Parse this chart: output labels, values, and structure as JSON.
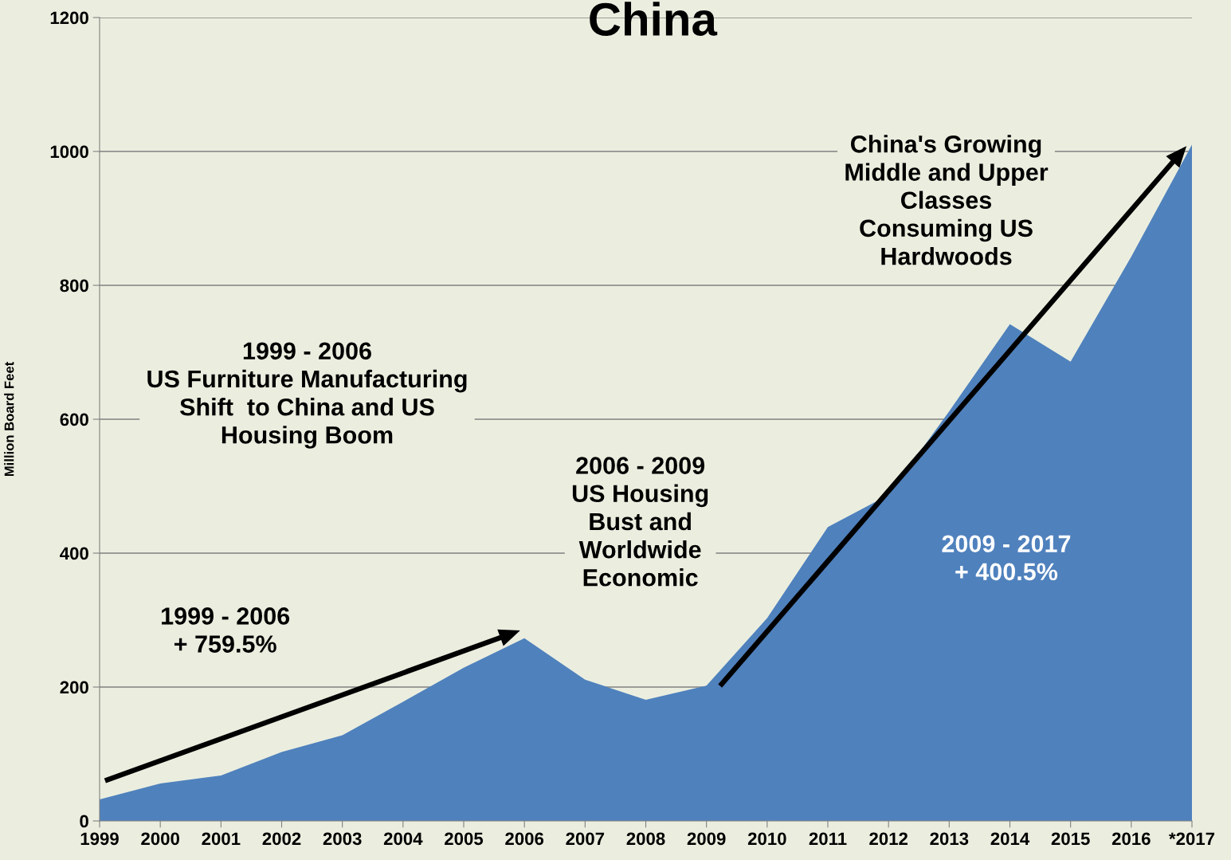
{
  "chart_data": {
    "type": "area",
    "title": "China",
    "ylabel": "Million Board Feet",
    "categories": [
      "1999",
      "2000",
      "2001",
      "2002",
      "2003",
      "2004",
      "2005",
      "2006",
      "2007",
      "2008",
      "2009",
      "2010",
      "2011",
      "2012",
      "2013",
      "2014",
      "2015",
      "2016",
      "*2017"
    ],
    "series": [
      {
        "color": "#4f81bd",
        "values": [
          32,
          56,
          68,
          103,
          128,
          178,
          229,
          273,
          211,
          181,
          202,
          303,
          439,
          487,
          612,
          742,
          686,
          843,
          1010
        ]
      }
    ],
    "ylim": [
      0,
      1200
    ],
    "yticks": [
      0,
      200,
      400,
      600,
      800,
      1000,
      1200
    ],
    "grid": "y",
    "annotations": [
      "1999 - 2006\nUS Furniture Manufacturing\nShift  to China and US\nHousing Boom",
      "1999 - 2006\n+ 759.5%",
      "2006 - 2009\nUS Housing\nBust and\nWorldwide\nEconomic",
      "China's Growing\nMiddle and Upper\nClasses\nConsuming US\nHardwoods",
      "2009 - 2017\n+ 400.5%"
    ]
  }
}
